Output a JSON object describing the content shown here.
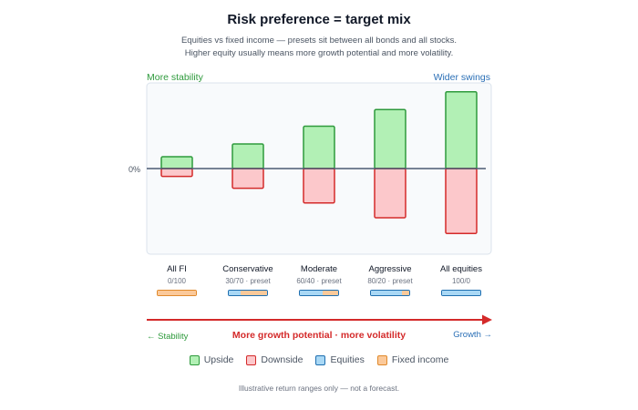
{
  "chart_data": {
    "type": "bar",
    "title": "Risk preference = target mix",
    "subtitle_lines": [
      "Equities vs fixed income — presets sit between all bonds and all stocks.",
      "Higher equity usually means more growth potential and more volatility."
    ],
    "corner_labels": {
      "left": "More stability",
      "right": "Wider swings"
    },
    "zero_label": "0%",
    "categories": [
      "All FI",
      "Conservative",
      "Moderate",
      "Aggressive",
      "All equities"
    ],
    "mix_labels": [
      "0/100",
      "30/70 · preset",
      "60/40 · preset",
      "80/20 · preset",
      "100/0"
    ],
    "equity_share": [
      0,
      30,
      60,
      80,
      100
    ],
    "fixed_income_share": [
      100,
      70,
      40,
      20,
      0
    ],
    "series": [
      {
        "name": "Upside",
        "values": [
          1.2,
          2.5,
          4.3,
          6.0,
          7.8
        ]
      },
      {
        "name": "Downside",
        "values": [
          -0.8,
          -2.0,
          -3.5,
          -5.0,
          -6.6
        ]
      }
    ],
    "ylim": [
      -8,
      10
    ],
    "grid": false,
    "axis": {
      "left_label": "← Stability",
      "center_label": "More growth potential · more volatility",
      "right_label": "Growth →"
    },
    "legend": [
      "Upside",
      "Downside",
      "Equities",
      "Fixed income"
    ],
    "legend_placement": "bottom",
    "footnote": "Illustrative return ranges only — not a forecast."
  },
  "colors": {
    "upside_fill": "#b2f0b5",
    "upside_stroke": "#2e9a3c",
    "downside_fill": "#fcc8cb",
    "downside_stroke": "#d42a2a",
    "equities_fill": "#a9d8f5",
    "equities_stroke": "#1f6fb0",
    "fi_fill": "#fbc99a",
    "fi_stroke": "#e08a2c",
    "arrow": "#d42a2a",
    "zero_line": "#4b5a73",
    "panel_fill": "#f8fafc",
    "panel_stroke": "#dbe3ec"
  }
}
